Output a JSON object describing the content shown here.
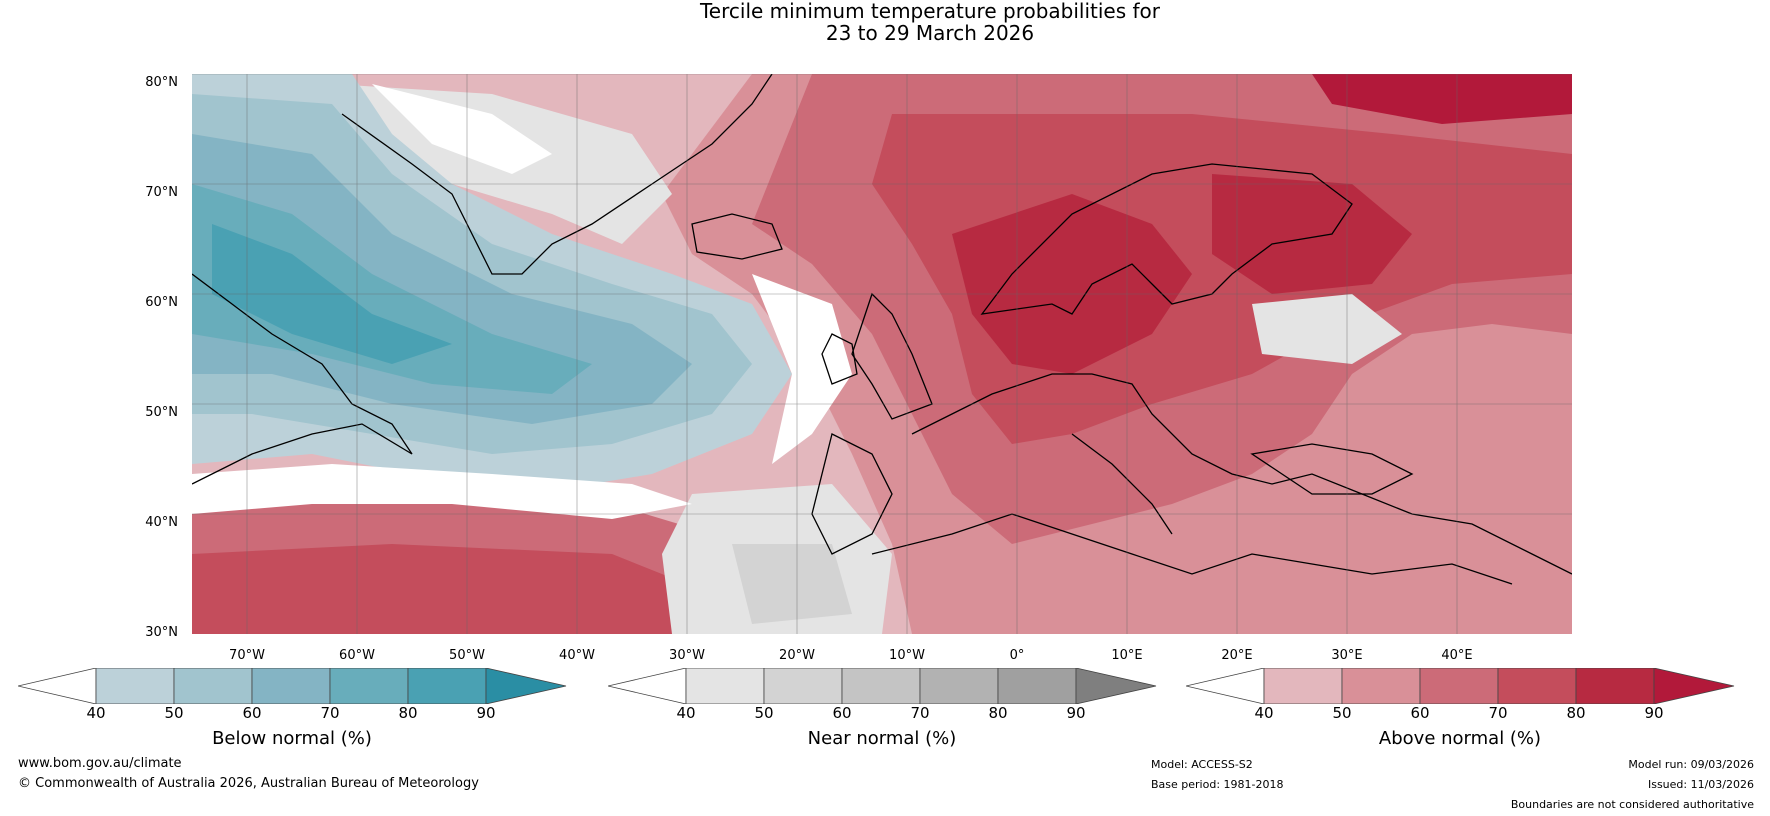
{
  "title": {
    "line1": "Tercile minimum temperature probabilities for",
    "line2": "23 to 29 March 2026"
  },
  "lat_labels": [
    "80°N",
    "70°N",
    "60°N",
    "50°N",
    "40°N",
    "30°N"
  ],
  "lon_labels": [
    "70°W",
    "60°W",
    "50°W",
    "40°W",
    "30°W",
    "20°W",
    "10°W",
    "0°",
    "10°E",
    "20°E",
    "30°E",
    "40°E"
  ],
  "colorbars": [
    {
      "title": "Below normal (%)",
      "ticks": [
        "40",
        "50",
        "60",
        "70",
        "80",
        "90"
      ],
      "colors": [
        "#ffffff",
        "#bcd1d9",
        "#a1c4ce",
        "#84b4c4",
        "#68adbb",
        "#4aa1b3",
        "#2a8ea4"
      ]
    },
    {
      "title": "Near normal (%)",
      "ticks": [
        "40",
        "50",
        "60",
        "70",
        "80",
        "90"
      ],
      "colors": [
        "#ffffff",
        "#e4e4e4",
        "#d3d3d3",
        "#c4c4c4",
        "#b2b2b2",
        "#a0a0a0",
        "#7f7f7f"
      ]
    },
    {
      "title": "Above normal (%)",
      "ticks": [
        "40",
        "50",
        "60",
        "70",
        "80",
        "90"
      ],
      "colors": [
        "#ffffff",
        "#e3b7bd",
        "#d99098",
        "#cc6b78",
        "#c44d5c",
        "#b72a41",
        "#b2193a"
      ]
    }
  ],
  "footer": {
    "url": "www.bom.gov.au/climate",
    "copyright": "© Commonwealth of Australia 2026, Australian Bureau of Meteorology",
    "model": "Model: ACCESS-S2",
    "base_period": "Base period: 1981-2018",
    "model_run": "Model run: 09/03/2026",
    "issued": "Issued: 11/03/2026",
    "disclaimer": "Boundaries are not considered authoritative"
  }
}
